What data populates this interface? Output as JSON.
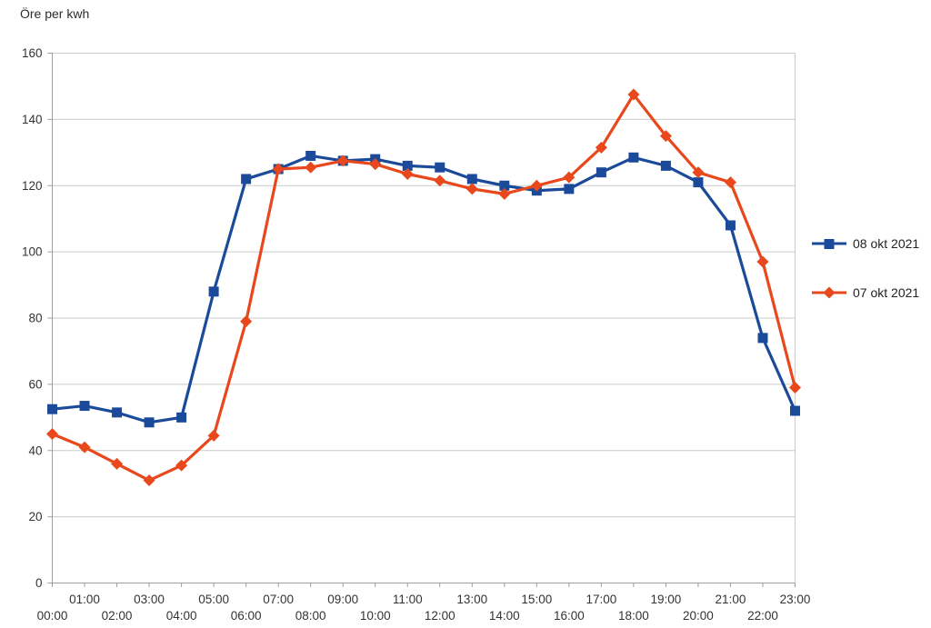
{
  "title": "Öre per kwh",
  "chart_data": {
    "type": "line",
    "title": "Öre per kwh",
    "x_categories": [
      "00:00",
      "01:00",
      "02:00",
      "03:00",
      "04:00",
      "05:00",
      "06:00",
      "07:00",
      "08:00",
      "09:00",
      "10:00",
      "11:00",
      "12:00",
      "13:00",
      "14:00",
      "15:00",
      "16:00",
      "17:00",
      "18:00",
      "19:00",
      "20:00",
      "21:00",
      "22:00",
      "23:00"
    ],
    "ylim": [
      0,
      160
    ],
    "ytick_step": 20,
    "grid": "horizontal",
    "legend_position": "right",
    "axis_color": "#9e9e9e",
    "gridline_color": "#cbcbcb",
    "label_color": "#333333",
    "series": [
      {
        "name": "08 okt 2021",
        "color": "#1a4a99",
        "marker": "square",
        "values": [
          52.5,
          53.5,
          51.5,
          48.5,
          50,
          88,
          122,
          125,
          129,
          127.5,
          128,
          126,
          125.5,
          122,
          120,
          118.5,
          119,
          124,
          128.5,
          126,
          121,
          108,
          74,
          52
        ]
      },
      {
        "name": "07 okt 2021",
        "color": "#e8481c",
        "marker": "diamond",
        "values": [
          45,
          41,
          36,
          31,
          35.5,
          44.5,
          79,
          125,
          125.5,
          127.5,
          126.5,
          123.5,
          121.5,
          119,
          117.5,
          120,
          122.5,
          131.5,
          147.5,
          135,
          124,
          121,
          97,
          59
        ]
      }
    ]
  }
}
